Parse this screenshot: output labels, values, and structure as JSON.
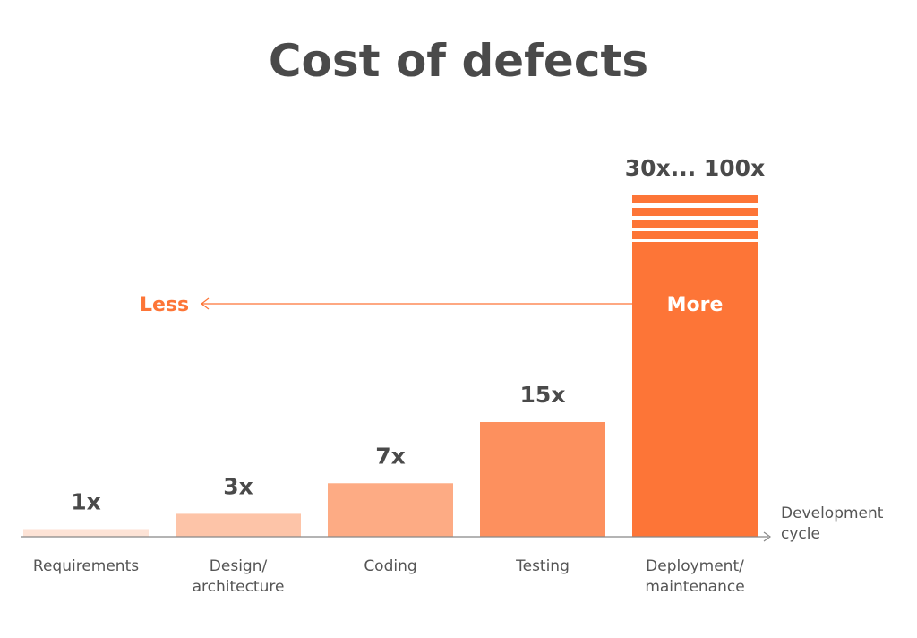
{
  "chart_data": {
    "type": "bar",
    "title": "Cost of defects",
    "categories": [
      [
        "Requirements"
      ],
      [
        "Design/",
        "architecture"
      ],
      [
        "Coding"
      ],
      [
        "Testing"
      ],
      [
        "Deployment/",
        "maintenance"
      ]
    ],
    "values": [
      1,
      3,
      7,
      15,
      30
    ],
    "value_labels": [
      "1x",
      "3x",
      "7x",
      "15x",
      "30x... 100x"
    ],
    "colors": [
      "#fde3d6",
      "#fdc4a8",
      "#fdab84",
      "#fd905e",
      "#fd7537"
    ],
    "xlabel": [
      "Development",
      "cycle"
    ],
    "arrow": {
      "left_label": "Less",
      "right_label": "More"
    },
    "accent_color": "#fd7537",
    "axis_color": "#888888",
    "last_bar_striped": true,
    "grid": false
  }
}
